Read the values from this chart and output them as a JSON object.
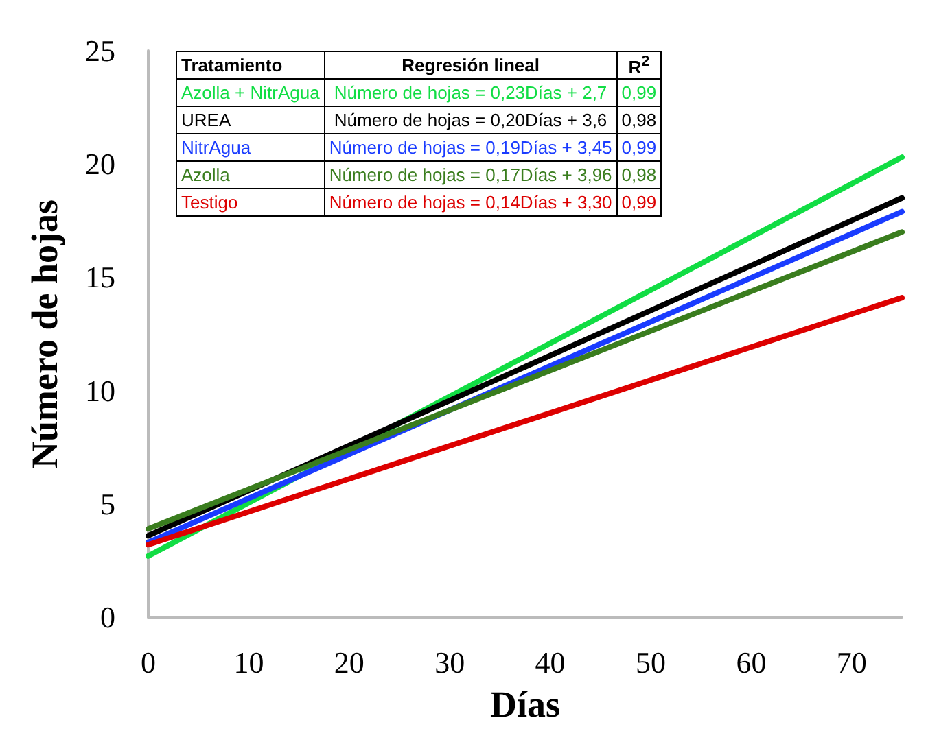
{
  "chart_data": {
    "type": "line",
    "xlabel": "Días",
    "ylabel": "Número de hojas",
    "xlim": [
      0,
      75
    ],
    "xticks": [
      0,
      10,
      20,
      30,
      40,
      50,
      60,
      70
    ],
    "ylim": [
      0,
      25
    ],
    "yticks": [
      0,
      5,
      10,
      15,
      20,
      25
    ],
    "grid": false,
    "legend": "top left",
    "marker": "none",
    "line_style": "solid",
    "x": [
      0,
      75
    ],
    "series": [
      {
        "name": "Azolla + NitrAgua",
        "color": "#11dd44",
        "values": [
          2.7,
          20.3
        ]
      },
      {
        "name": "UREA",
        "color": "#000000",
        "values": [
          3.6,
          18.5
        ]
      },
      {
        "name": "NitrAgua",
        "color": "#1a3cff",
        "values": [
          3.3,
          17.9
        ]
      },
      {
        "name": "Azolla",
        "color": "#3a7d1e",
        "values": [
          3.9,
          17.0
        ]
      },
      {
        "name": "Testigo",
        "color": "#dd0000",
        "values": [
          3.2,
          14.1
        ]
      }
    ],
    "annotations": [
      "Tratamiento",
      "Regresión lineal",
      "R$^{2}$",
      "Número de hojas = 0,23Días + 2,7",
      "0,99",
      "Número de hojas = 0,20Días + 3,6",
      "0,98",
      "Número de hojas = 0,19Días + 3,45",
      "0,99",
      "Número de hojas = 0,17Días + 3,96",
      "0,98",
      "Número de hojas = 0,14Días + 3,30",
      "0,99"
    ]
  }
}
